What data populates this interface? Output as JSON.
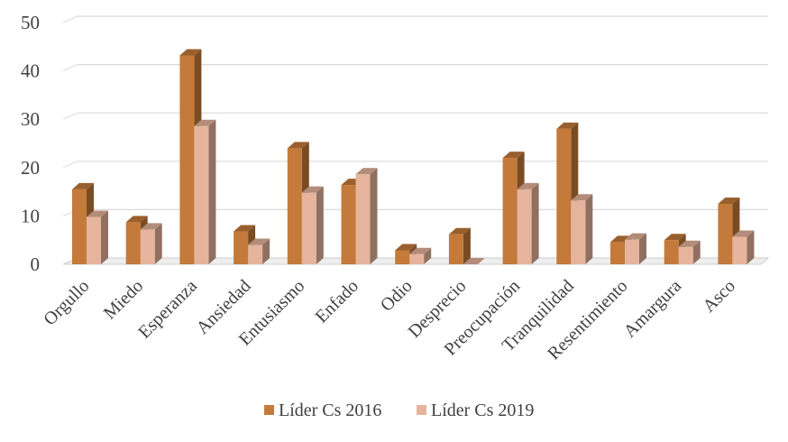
{
  "chart_data": {
    "type": "bar",
    "title": "",
    "xlabel": "",
    "ylabel": "",
    "ylim": [
      0,
      50
    ],
    "yticks": [
      0,
      10,
      20,
      30,
      40,
      50
    ],
    "grid": true,
    "legend_position": "bottom",
    "categories": [
      "Orgullo",
      "Miedo",
      "Esperanza",
      "Ansiedad",
      "Entusiasmo",
      "Enfado",
      "Odio",
      "Desprecio",
      "Preocupación",
      "Tranquilidad",
      "Resentimiento",
      "Amargura",
      "Asco"
    ],
    "series": [
      {
        "name": "Líder Cs 2016",
        "color": "#c47a3a",
        "values": [
          15.5,
          8.7,
          43.2,
          6.8,
          24.0,
          16.4,
          2.9,
          6.2,
          22.0,
          28.0,
          4.6,
          5.0,
          12.5
        ]
      },
      {
        "name": "Líder Cs 2019",
        "color": "#e6b49c",
        "values": [
          9.8,
          7.2,
          28.6,
          4.0,
          14.8,
          18.6,
          2.1,
          0.0,
          15.5,
          13.2,
          5.1,
          3.6,
          5.7
        ]
      }
    ]
  }
}
